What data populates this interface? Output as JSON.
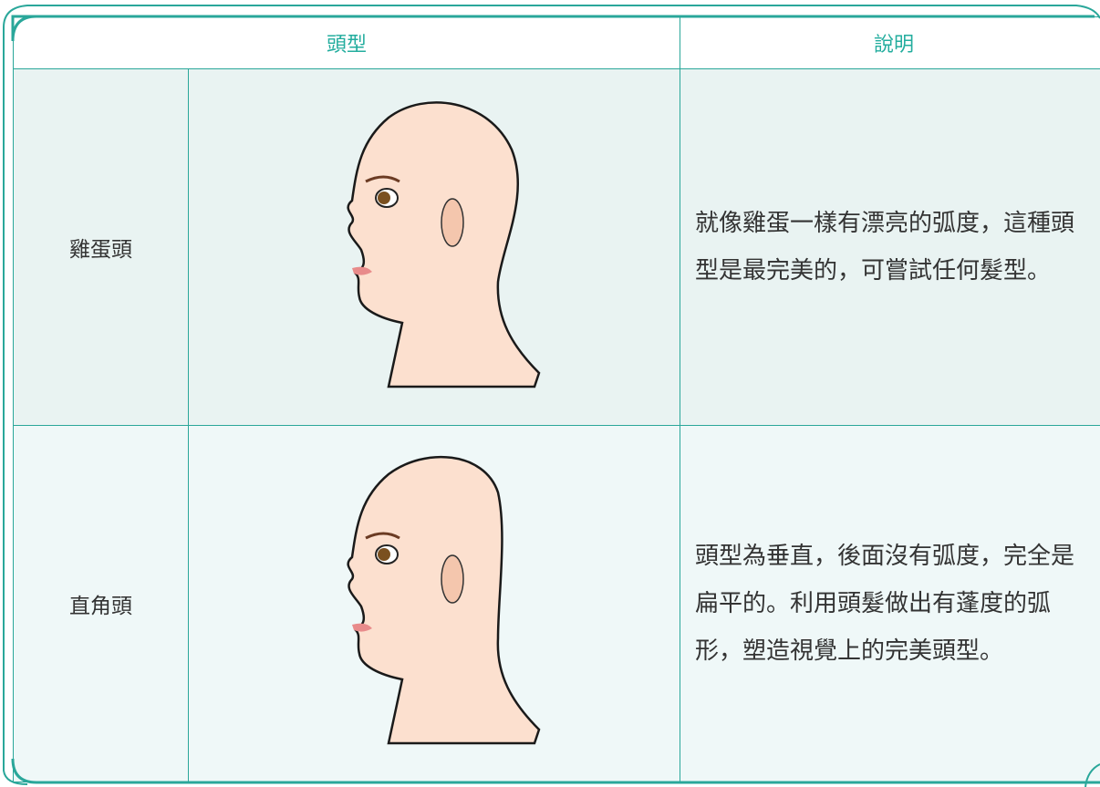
{
  "table": {
    "header": [
      "頭型",
      "說明"
    ],
    "rows": [
      [
        "雞蛋頭",
        "就像雞蛋一樣有漂亮的弧度，這種頭型是最完美的，可嘗試任何髮型。"
      ],
      [
        "直角頭",
        "頭型為垂直，後面沒有弧度，完全是扁平的。利用頭髮做出有蓬度的弧形，塑造視覺上的完美頭型。"
      ]
    ]
  }
}
